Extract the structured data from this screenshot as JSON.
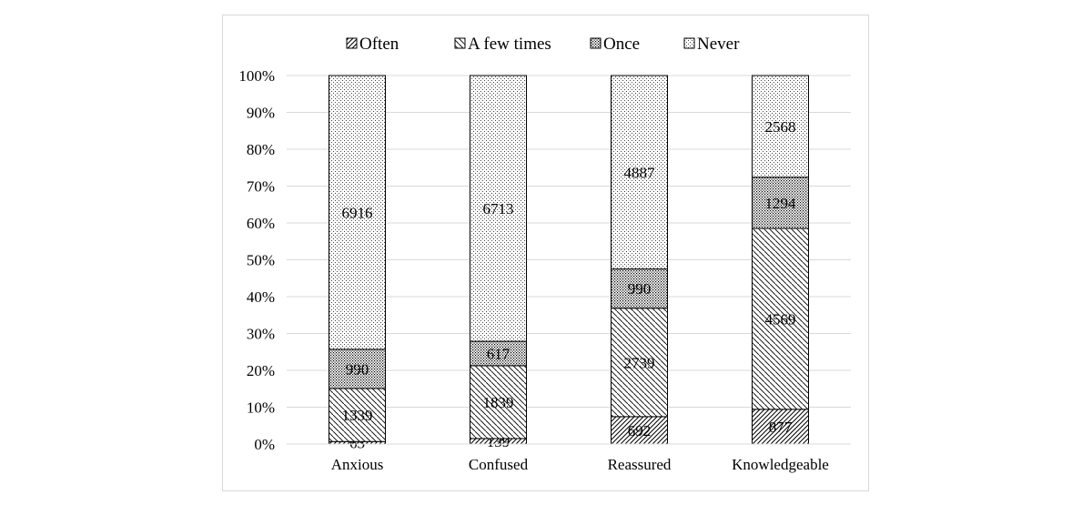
{
  "chart_data": {
    "type": "bar",
    "stacked": "percent",
    "categories": [
      "Anxious",
      "Confused",
      "Reassured",
      "Knowledgeable"
    ],
    "series": [
      {
        "name": "Often",
        "values": [
          63,
          139,
          692,
          877
        ],
        "pattern": "diag-fwd"
      },
      {
        "name": "A few times",
        "values": [
          1339,
          1839,
          2739,
          4569
        ],
        "pattern": "diag-back"
      },
      {
        "name": "Once",
        "values": [
          990,
          617,
          990,
          1294
        ],
        "pattern": "dense-dots"
      },
      {
        "name": "Never",
        "values": [
          6916,
          6713,
          4887,
          2568
        ],
        "pattern": "sparse-dots"
      }
    ],
    "ylim": [
      0,
      100
    ],
    "yticks": [
      "0%",
      "10%",
      "20%",
      "30%",
      "40%",
      "50%",
      "60%",
      "70%",
      "80%",
      "90%",
      "100%"
    ],
    "grid": true,
    "legend": "top"
  }
}
